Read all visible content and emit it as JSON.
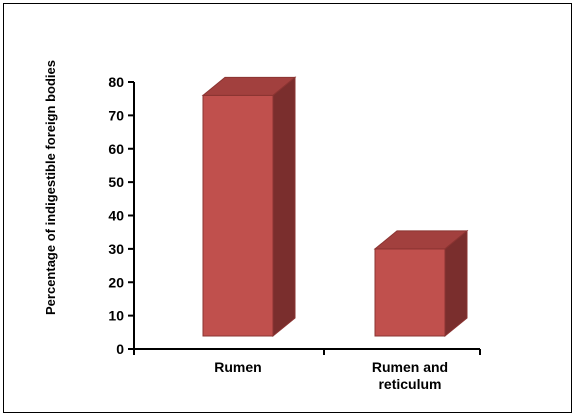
{
  "chart_data": {
    "type": "bar",
    "style": "3d-column",
    "categories": [
      [
        "Rumen"
      ],
      [
        "Rumen and",
        "reticulum"
      ]
    ],
    "values": [
      76,
      30
    ],
    "ylabel": "Percentage of indigestible foreign bodies",
    "xlabel": "",
    "title": "",
    "ylim": [
      0,
      80
    ],
    "yticks": [
      0,
      10,
      20,
      30,
      40,
      50,
      60,
      70,
      80
    ],
    "grid": false,
    "legend": "none",
    "colors": {
      "front": "#c0504d",
      "top": "#a2403e",
      "side": "#7a2e2d",
      "edge": "#8b3432",
      "axis": "#000000"
    }
  }
}
